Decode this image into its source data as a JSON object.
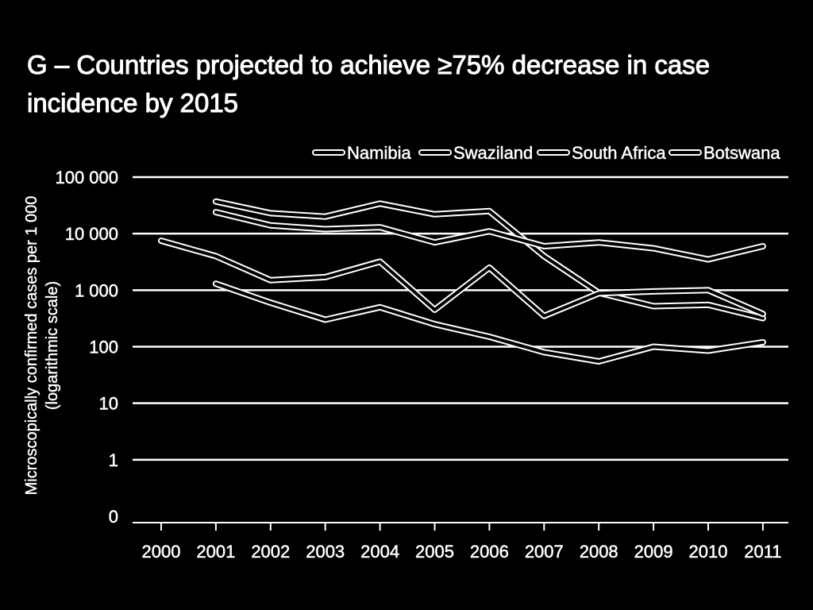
{
  "title": "G – Countries projected to achieve ≥75% decrease in case incidence by 2015",
  "chart_data": {
    "type": "line",
    "title": "G – Countries projected to achieve ≥75% decrease in case incidence by 2015",
    "xlabel": "",
    "ylabel": "Microscopically confirmed cases per 1 000 (logarithmic scale)",
    "ylabel_lines": [
      "Microscopically confirmed cases per 1 000",
      "(logarithmic scale)"
    ],
    "yscale": "log",
    "categories": [
      "2000",
      "2001",
      "2002",
      "2003",
      "2004",
      "2005",
      "2006",
      "2007",
      "2008",
      "2009",
      "2010",
      "2011"
    ],
    "yticks": [
      {
        "label": "0",
        "value": 0.1
      },
      {
        "label": "1",
        "value": 1
      },
      {
        "label": "10",
        "value": 10
      },
      {
        "label": "100",
        "value": 100
      },
      {
        "label": "1 000",
        "value": 1000
      },
      {
        "label": "10 000",
        "value": 10000
      },
      {
        "label": "100 000",
        "value": 100000
      }
    ],
    "ylim": [
      0.1,
      100000
    ],
    "grid": true,
    "legend_position": "top-right",
    "series": [
      {
        "name": "Namibia",
        "values": [
          null,
          37000,
          23000,
          20000,
          34000,
          22000,
          25000,
          4000,
          900,
          520,
          550,
          320
        ]
      },
      {
        "name": "Swaziland",
        "values": [
          null,
          24000,
          14000,
          12000,
          13000,
          7000,
          11000,
          6000,
          7000,
          5500,
          3500,
          6000
        ]
      },
      {
        "name": "South Africa",
        "values": [
          null,
          1300,
          600,
          300,
          500,
          250,
          150,
          80,
          55,
          100,
          85,
          120
        ]
      },
      {
        "name": "Botswana",
        "values": [
          7500,
          4000,
          1500,
          1700,
          3200,
          450,
          2500,
          350,
          880,
          950,
          1000,
          380
        ]
      }
    ]
  }
}
